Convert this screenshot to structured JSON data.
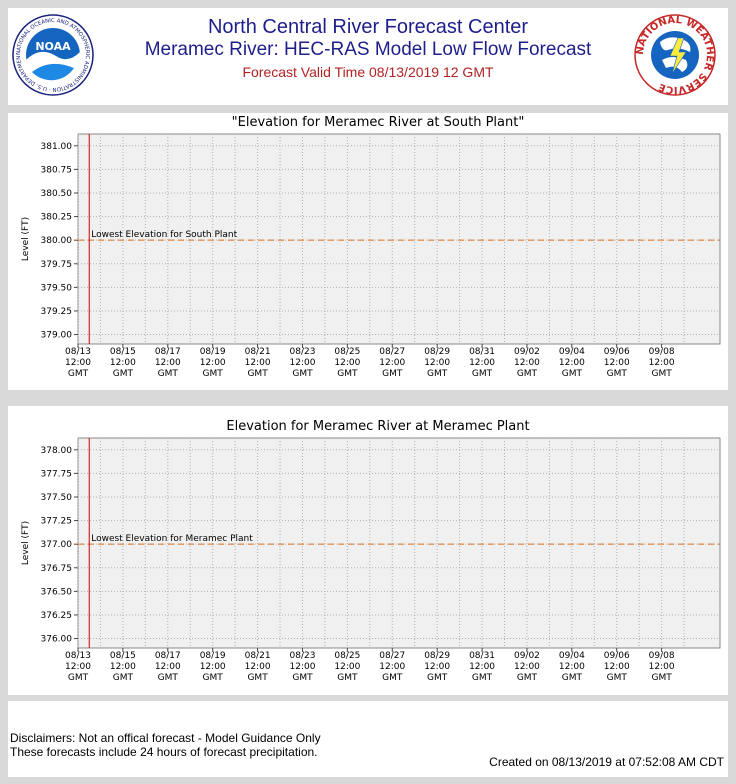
{
  "header": {
    "title": "North Central River Forecast Center",
    "subtitle": "Meramec River: HEC-RAS Model Low Flow Forecast",
    "valid_time": "Forecast Valid Time 08/13/2019 12 GMT",
    "noaa_logo_text": "NOAA",
    "noaa_ring_text": "NATIONAL OCEANIC AND ATMOSPHERIC ADMINISTRATION · U.S. DEPARTMENT OF COMMERCE",
    "nws_ring_text": "NATIONAL WEATHER SERVICE"
  },
  "colors": {
    "title_blue": "#1e1e8c",
    "valid_time_red": "#b22222",
    "forecast_line": "#cc0000",
    "threshold_line": "#e07020",
    "plot_bg": "#f0f0f0"
  },
  "chart_data": [
    {
      "type": "line",
      "title": "\"Elevation for Meramec River at South Plant\"",
      "ylabel": "Level (FT)",
      "xlabel": "",
      "ylim": [
        378.9,
        381.125
      ],
      "yticks": [
        "381.00",
        "380.75",
        "380.50",
        "380.25",
        "380.00",
        "379.75",
        "379.50",
        "379.25",
        "379.00"
      ],
      "xlim": [
        0,
        28.6
      ],
      "x_tick_days": [
        0,
        2,
        4,
        6,
        8,
        10,
        12,
        14,
        16,
        18,
        20,
        22,
        24,
        26
      ],
      "x_tick_labels": [
        [
          "08/13",
          "12:00",
          "GMT"
        ],
        [
          "08/15",
          "12:00",
          "GMT"
        ],
        [
          "08/17",
          "12:00",
          "GMT"
        ],
        [
          "08/19",
          "12:00",
          "GMT"
        ],
        [
          "08/21",
          "12:00",
          "GMT"
        ],
        [
          "08/23",
          "12:00",
          "GMT"
        ],
        [
          "08/25",
          "12:00",
          "GMT"
        ],
        [
          "08/27",
          "12:00",
          "GMT"
        ],
        [
          "08/29",
          "12:00",
          "GMT"
        ],
        [
          "08/31",
          "12:00",
          "GMT"
        ],
        [
          "09/02",
          "12:00",
          "GMT"
        ],
        [
          "09/04",
          "12:00",
          "GMT"
        ],
        [
          "09/06",
          "12:00",
          "GMT"
        ],
        [
          "09/08",
          "12:00",
          "GMT"
        ]
      ],
      "forecast_start_day": 0.5,
      "threshold": {
        "value": 380.0,
        "label": "Lowest Elevation for South Plant"
      },
      "grid": true
    },
    {
      "type": "line",
      "title": "Elevation for Meramec River at Meramec Plant",
      "ylabel": "Level (FT)",
      "xlabel": "",
      "ylim": [
        375.9,
        378.125
      ],
      "yticks": [
        "378.00",
        "377.75",
        "377.50",
        "377.25",
        "377.00",
        "376.75",
        "376.50",
        "376.25",
        "376.00"
      ],
      "xlim": [
        0,
        28.6
      ],
      "x_tick_days": [
        0,
        2,
        4,
        6,
        8,
        10,
        12,
        14,
        16,
        18,
        20,
        22,
        24,
        26
      ],
      "x_tick_labels": [
        [
          "08/13",
          "12:00",
          "GMT"
        ],
        [
          "08/15",
          "12:00",
          "GMT"
        ],
        [
          "08/17",
          "12:00",
          "GMT"
        ],
        [
          "08/19",
          "12:00",
          "GMT"
        ],
        [
          "08/21",
          "12:00",
          "GMT"
        ],
        [
          "08/23",
          "12:00",
          "GMT"
        ],
        [
          "08/25",
          "12:00",
          "GMT"
        ],
        [
          "08/27",
          "12:00",
          "GMT"
        ],
        [
          "08/29",
          "12:00",
          "GMT"
        ],
        [
          "08/31",
          "12:00",
          "GMT"
        ],
        [
          "09/02",
          "12:00",
          "GMT"
        ],
        [
          "09/04",
          "12:00",
          "GMT"
        ],
        [
          "09/06",
          "12:00",
          "GMT"
        ],
        [
          "09/08",
          "12:00",
          "GMT"
        ]
      ],
      "forecast_start_day": 0.5,
      "threshold": {
        "value": 377.0,
        "label": "Lowest Elevation for Meramec Plant"
      },
      "grid": true
    }
  ],
  "footer": {
    "disclaimer_1": "Disclaimers: Not an offical forecast - Model Guidance Only",
    "disclaimer_2": "These forecasts include 24 hours of forecast precipitation.",
    "created": "Created on 08/13/2019 at 07:52:08 AM CDT"
  }
}
